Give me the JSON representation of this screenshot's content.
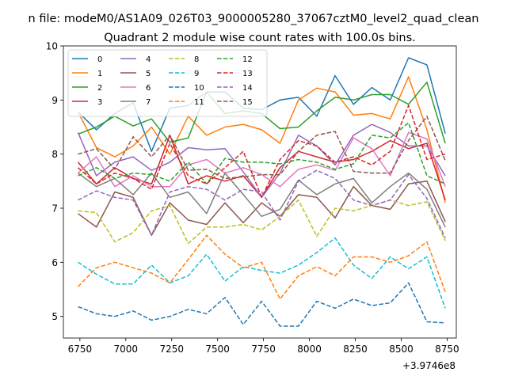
{
  "figure": {
    "suptitle": "n file: modeM0/AS1A09_026T03_9000005280_37067cztM0_level2_quad_clean",
    "offset_label": "+3.9746e8"
  },
  "chart_data": {
    "type": "line",
    "title": "Quadrant 2 module wise count rates with 100.0s bins.",
    "xlabel": "",
    "ylabel": "",
    "xlim": [
      6660,
      8800
    ],
    "ylim": [
      4.6,
      10.0
    ],
    "xticks": [
      6750,
      7000,
      7250,
      7500,
      7750,
      8000,
      8250,
      8500,
      8750
    ],
    "yticks": [
      5,
      6,
      7,
      8,
      9,
      10
    ],
    "x": [
      6740,
      6840,
      6940,
      7040,
      7140,
      7240,
      7340,
      7440,
      7540,
      7640,
      7740,
      7840,
      7940,
      8040,
      8140,
      8240,
      8340,
      8440,
      8540,
      8640,
      8740
    ],
    "legend": {
      "placement": "upper-left",
      "ncol": 4
    },
    "series": [
      {
        "name": "0",
        "color": "#1f77b4",
        "dash": "solid",
        "values": [
          8.78,
          8.45,
          8.75,
          8.95,
          8.05,
          8.85,
          8.9,
          9.15,
          9.15,
          8.85,
          8.82,
          9.0,
          9.05,
          8.7,
          9.45,
          8.92,
          9.23,
          9.0,
          9.78,
          9.65,
          8.38
        ]
      },
      {
        "name": "1",
        "color": "#ff7f0e",
        "dash": "solid",
        "values": [
          8.78,
          8.12,
          7.95,
          8.15,
          8.5,
          8.0,
          8.7,
          8.35,
          8.5,
          8.55,
          8.45,
          8.2,
          9.0,
          9.22,
          9.15,
          8.72,
          8.75,
          8.65,
          9.43,
          8.45,
          7.1
        ]
      },
      {
        "name": "2",
        "color": "#2ca02c",
        "dash": "solid",
        "values": [
          8.37,
          8.5,
          8.7,
          8.52,
          8.65,
          8.22,
          8.3,
          9.15,
          8.75,
          8.8,
          8.75,
          8.47,
          8.5,
          8.8,
          9.05,
          9.0,
          9.1,
          9.1,
          8.92,
          9.33,
          8.2
        ]
      },
      {
        "name": "3",
        "color": "#d62728",
        "dash": "solid",
        "values": [
          7.85,
          7.45,
          7.75,
          7.55,
          7.45,
          8.35,
          7.45,
          7.6,
          7.5,
          7.6,
          7.2,
          7.75,
          8.05,
          7.95,
          7.85,
          7.9,
          8.05,
          8.25,
          8.1,
          8.2,
          7.15
        ]
      },
      {
        "name": "4",
        "color": "#9467bd",
        "dash": "solid",
        "values": [
          8.4,
          7.6,
          7.85,
          7.95,
          7.7,
          7.85,
          8.12,
          8.08,
          8.1,
          7.67,
          7.2,
          7.65,
          8.35,
          8.15,
          7.8,
          8.35,
          8.55,
          8.4,
          8.15,
          8.15,
          7.6
        ]
      },
      {
        "name": "5",
        "color": "#8c564b",
        "dash": "solid",
        "values": [
          6.9,
          6.65,
          7.3,
          7.2,
          6.5,
          7.1,
          6.78,
          6.7,
          7.1,
          6.73,
          7.1,
          6.85,
          7.25,
          7.2,
          6.82,
          7.4,
          7.05,
          6.98,
          7.45,
          7.5,
          6.75
        ]
      },
      {
        "name": "6",
        "color": "#e377c2",
        "dash": "solid",
        "values": [
          7.65,
          7.95,
          7.4,
          7.6,
          7.4,
          7.4,
          7.8,
          7.9,
          7.65,
          7.75,
          7.62,
          7.4,
          7.72,
          7.8,
          7.7,
          8.3,
          8.1,
          7.6,
          8.4,
          8.28,
          7.4
        ]
      },
      {
        "name": "7",
        "color": "#7f7f7f",
        "dash": "solid",
        "values": [
          7.65,
          7.4,
          7.55,
          7.25,
          7.65,
          7.2,
          7.3,
          6.9,
          7.65,
          7.25,
          6.85,
          6.98,
          7.52,
          7.25,
          7.45,
          7.55,
          7.1,
          7.4,
          7.65,
          7.35,
          6.65
        ]
      },
      {
        "name": "8",
        "color": "#bcbd22",
        "dash": "dashed",
        "values": [
          6.95,
          6.92,
          6.38,
          6.55,
          6.95,
          7.05,
          6.35,
          6.65,
          6.65,
          6.7,
          6.6,
          6.85,
          7.15,
          6.48,
          7.0,
          6.95,
          7.05,
          7.15,
          7.05,
          7.12,
          6.4
        ]
      },
      {
        "name": "9",
        "color": "#17becf",
        "dash": "dashed",
        "values": [
          6.0,
          5.78,
          5.6,
          5.6,
          5.95,
          5.62,
          5.75,
          6.15,
          5.65,
          5.92,
          5.85,
          5.8,
          5.95,
          6.18,
          6.45,
          5.95,
          5.7,
          6.1,
          5.88,
          6.1,
          5.15
        ]
      },
      {
        "name": "10",
        "color": "#1f77b4",
        "dash": "dashed",
        "values": [
          5.18,
          5.05,
          5.0,
          5.1,
          4.93,
          5.0,
          5.13,
          5.05,
          5.35,
          4.85,
          5.28,
          4.82,
          4.82,
          5.28,
          5.15,
          5.32,
          5.2,
          5.25,
          5.62,
          4.9,
          4.88
        ]
      },
      {
        "name": "11",
        "color": "#ff7f0e",
        "dash": "dashed",
        "values": [
          5.55,
          5.9,
          6.0,
          5.9,
          5.8,
          5.62,
          6.05,
          6.5,
          6.15,
          5.9,
          6.0,
          5.32,
          5.75,
          5.92,
          5.75,
          6.1,
          6.1,
          6.0,
          6.12,
          6.38,
          5.45
        ]
      },
      {
        "name": "12",
        "color": "#2ca02c",
        "dash": "dashed",
        "values": [
          7.6,
          7.75,
          7.55,
          7.65,
          7.62,
          7.5,
          7.85,
          7.45,
          7.92,
          7.85,
          7.85,
          7.82,
          7.9,
          7.85,
          7.72,
          7.82,
          8.35,
          8.3,
          8.58,
          7.6,
          7.45
        ]
      },
      {
        "name": "13",
        "color": "#d62728",
        "dash": "dashed",
        "values": [
          7.75,
          7.45,
          7.65,
          7.55,
          7.35,
          8.2,
          7.6,
          7.45,
          7.75,
          8.05,
          7.2,
          7.9,
          8.25,
          8.15,
          7.85,
          7.95,
          7.8,
          8.05,
          8.9,
          7.9,
          8.0
        ]
      },
      {
        "name": "14",
        "color": "#9467bd",
        "dash": "dashed",
        "values": [
          7.15,
          7.32,
          7.2,
          7.15,
          6.5,
          7.3,
          7.4,
          7.35,
          7.15,
          7.35,
          7.3,
          6.78,
          7.5,
          7.7,
          7.55,
          7.15,
          7.05,
          7.15,
          7.62,
          7.18,
          6.45
        ]
      },
      {
        "name": "15",
        "color": "#8c564b",
        "dash": "dashed",
        "values": [
          8.0,
          8.1,
          7.72,
          8.32,
          7.95,
          8.35,
          7.7,
          7.72,
          7.55,
          7.58,
          7.62,
          7.62,
          8.05,
          8.35,
          8.42,
          7.68,
          7.65,
          7.65,
          8.25,
          8.7,
          7.88
        ]
      }
    ]
  }
}
